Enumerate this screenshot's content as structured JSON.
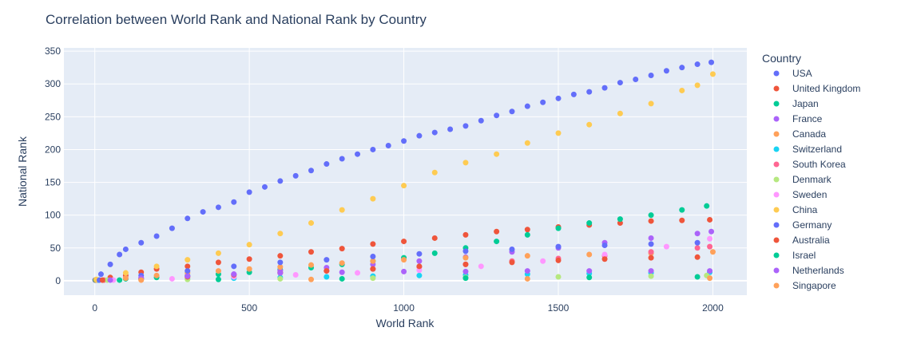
{
  "chart_data": {
    "type": "scatter",
    "title": "Correlation between World Rank and National Rank by Country",
    "xlabel": "World Rank",
    "ylabel": "National Rank",
    "xlim": [
      -100,
      2110
    ],
    "ylim": [
      -22,
      355
    ],
    "xticks": [
      0,
      500,
      1000,
      1500,
      2000
    ],
    "yticks": [
      0,
      50,
      100,
      150,
      200,
      250,
      300,
      350
    ],
    "grid": true,
    "legend_title": "Country",
    "legend_position": "right",
    "plot_bg": "#e5ecf6",
    "series": [
      {
        "name": "USA",
        "color": "#636efa",
        "points": [
          [
            1,
            1
          ],
          [
            20,
            10
          ],
          [
            50,
            25
          ],
          [
            80,
            40
          ],
          [
            100,
            48
          ],
          [
            150,
            58
          ],
          [
            200,
            68
          ],
          [
            250,
            80
          ],
          [
            300,
            95
          ],
          [
            350,
            105
          ],
          [
            400,
            112
          ],
          [
            450,
            120
          ],
          [
            500,
            135
          ],
          [
            550,
            143
          ],
          [
            600,
            152
          ],
          [
            650,
            160
          ],
          [
            700,
            168
          ],
          [
            750,
            178
          ],
          [
            800,
            186
          ],
          [
            850,
            193
          ],
          [
            900,
            200
          ],
          [
            950,
            206
          ],
          [
            1000,
            213
          ],
          [
            1050,
            221
          ],
          [
            1100,
            226
          ],
          [
            1150,
            231
          ],
          [
            1200,
            236
          ],
          [
            1250,
            244
          ],
          [
            1300,
            252
          ],
          [
            1350,
            258
          ],
          [
            1400,
            266
          ],
          [
            1450,
            272
          ],
          [
            1500,
            278
          ],
          [
            1550,
            284
          ],
          [
            1600,
            288
          ],
          [
            1650,
            294
          ],
          [
            1700,
            302
          ],
          [
            1750,
            307
          ],
          [
            1800,
            313
          ],
          [
            1850,
            320
          ],
          [
            1900,
            325
          ],
          [
            1950,
            330
          ],
          [
            1995,
            333
          ]
        ]
      },
      {
        "name": "United Kingdom",
        "color": "#ef553b",
        "points": [
          [
            2,
            1
          ],
          [
            50,
            5
          ],
          [
            100,
            8
          ],
          [
            150,
            13
          ],
          [
            200,
            18
          ],
          [
            300,
            22
          ],
          [
            400,
            28
          ],
          [
            500,
            33
          ],
          [
            600,
            38
          ],
          [
            700,
            44
          ],
          [
            800,
            49
          ],
          [
            900,
            56
          ],
          [
            1000,
            60
          ],
          [
            1100,
            65
          ],
          [
            1200,
            70
          ],
          [
            1300,
            75
          ],
          [
            1400,
            78
          ],
          [
            1500,
            82
          ],
          [
            1600,
            85
          ],
          [
            1700,
            88
          ],
          [
            1800,
            91
          ],
          [
            1900,
            92
          ],
          [
            1990,
            93
          ]
        ]
      },
      {
        "name": "Japan",
        "color": "#00cc96",
        "points": [
          [
            3,
            1
          ],
          [
            100,
            3
          ],
          [
            200,
            5
          ],
          [
            300,
            8
          ],
          [
            400,
            10
          ],
          [
            500,
            13
          ],
          [
            600,
            17
          ],
          [
            700,
            20
          ],
          [
            800,
            25
          ],
          [
            900,
            30
          ],
          [
            1000,
            35
          ],
          [
            1100,
            42
          ],
          [
            1200,
            50
          ],
          [
            1300,
            60
          ],
          [
            1400,
            70
          ],
          [
            1500,
            80
          ],
          [
            1600,
            88
          ],
          [
            1700,
            94
          ],
          [
            1800,
            100
          ],
          [
            1900,
            108
          ],
          [
            1980,
            114
          ]
        ]
      },
      {
        "name": "France",
        "color": "#ab63fa",
        "points": [
          [
            10,
            1
          ],
          [
            150,
            4
          ],
          [
            300,
            7
          ],
          [
            450,
            10
          ],
          [
            600,
            15
          ],
          [
            750,
            20
          ],
          [
            900,
            25
          ],
          [
            1050,
            30
          ],
          [
            1200,
            36
          ],
          [
            1350,
            44
          ],
          [
            1500,
            50
          ],
          [
            1650,
            58
          ],
          [
            1800,
            65
          ],
          [
            1950,
            72
          ],
          [
            1995,
            75
          ]
        ]
      },
      {
        "name": "Canada",
        "color": "#ffa15a",
        "points": [
          [
            5,
            1
          ],
          [
            100,
            4
          ],
          [
            200,
            8
          ],
          [
            300,
            12
          ],
          [
            400,
            15
          ],
          [
            500,
            18
          ],
          [
            600,
            21
          ],
          [
            700,
            24
          ],
          [
            800,
            27
          ],
          [
            900,
            30
          ],
          [
            1000,
            32
          ],
          [
            1200,
            35
          ],
          [
            1400,
            38
          ],
          [
            1600,
            40
          ],
          [
            1800,
            42
          ],
          [
            2000,
            44
          ]
        ]
      },
      {
        "name": "Switzerland",
        "color": "#19d3f3",
        "points": [
          [
            12,
            1
          ],
          [
            150,
            2
          ],
          [
            300,
            3
          ],
          [
            450,
            4
          ],
          [
            600,
            5
          ],
          [
            750,
            6
          ],
          [
            900,
            7
          ],
          [
            1050,
            8
          ],
          [
            1200,
            9
          ],
          [
            1400,
            10
          ],
          [
            1600,
            11
          ],
          [
            1800,
            12
          ],
          [
            1990,
            13
          ]
        ]
      },
      {
        "name": "South Korea",
        "color": "#ff6692",
        "points": [
          [
            30,
            1
          ],
          [
            150,
            3
          ],
          [
            300,
            6
          ],
          [
            450,
            9
          ],
          [
            600,
            12
          ],
          [
            750,
            15
          ],
          [
            900,
            18
          ],
          [
            1050,
            21
          ],
          [
            1200,
            25
          ],
          [
            1350,
            30
          ],
          [
            1500,
            34
          ],
          [
            1650,
            38
          ],
          [
            1800,
            44
          ],
          [
            1950,
            50
          ],
          [
            1990,
            52
          ]
        ]
      },
      {
        "name": "Denmark",
        "color": "#b6e880",
        "points": [
          [
            40,
            1
          ],
          [
            300,
            2
          ],
          [
            600,
            3
          ],
          [
            900,
            4
          ],
          [
            1200,
            5
          ],
          [
            1500,
            6
          ],
          [
            1800,
            7
          ],
          [
            1980,
            8
          ]
        ]
      },
      {
        "name": "Sweden",
        "color": "#ff97ff",
        "points": [
          [
            60,
            1
          ],
          [
            250,
            3
          ],
          [
            450,
            6
          ],
          [
            650,
            9
          ],
          [
            850,
            12
          ],
          [
            1050,
            16
          ],
          [
            1250,
            22
          ],
          [
            1450,
            30
          ],
          [
            1650,
            40
          ],
          [
            1850,
            52
          ],
          [
            1990,
            64
          ]
        ]
      },
      {
        "name": "China",
        "color": "#fecb52",
        "points": [
          [
            5,
            2
          ],
          [
            100,
            12
          ],
          [
            200,
            22
          ],
          [
            300,
            32
          ],
          [
            400,
            42
          ],
          [
            500,
            55
          ],
          [
            600,
            72
          ],
          [
            700,
            88
          ],
          [
            800,
            108
          ],
          [
            900,
            125
          ],
          [
            1000,
            145
          ],
          [
            1100,
            165
          ],
          [
            1200,
            180
          ],
          [
            1300,
            193
          ],
          [
            1400,
            210
          ],
          [
            1500,
            225
          ],
          [
            1600,
            238
          ],
          [
            1700,
            255
          ],
          [
            1800,
            270
          ],
          [
            1900,
            290
          ],
          [
            1950,
            298
          ],
          [
            2000,
            315
          ]
        ]
      },
      {
        "name": "Germany",
        "color": "#636efa",
        "points": [
          [
            15,
            1
          ],
          [
            150,
            8
          ],
          [
            300,
            15
          ],
          [
            450,
            22
          ],
          [
            600,
            28
          ],
          [
            750,
            32
          ],
          [
            900,
            37
          ],
          [
            1050,
            41
          ],
          [
            1200,
            45
          ],
          [
            1350,
            48
          ],
          [
            1500,
            52
          ],
          [
            1650,
            54
          ],
          [
            1800,
            56
          ],
          [
            1950,
            58
          ]
        ]
      },
      {
        "name": "Australia",
        "color": "#ef553b",
        "points": [
          [
            25,
            1
          ],
          [
            150,
            3
          ],
          [
            300,
            6
          ],
          [
            450,
            9
          ],
          [
            600,
            12
          ],
          [
            750,
            15
          ],
          [
            900,
            18
          ],
          [
            1050,
            22
          ],
          [
            1200,
            25
          ],
          [
            1350,
            28
          ],
          [
            1500,
            31
          ],
          [
            1650,
            33
          ],
          [
            1800,
            35
          ],
          [
            1950,
            36
          ]
        ]
      },
      {
        "name": "Israel",
        "color": "#00cc96",
        "points": [
          [
            80,
            1
          ],
          [
            400,
            2
          ],
          [
            800,
            3
          ],
          [
            1200,
            4
          ],
          [
            1600,
            5
          ],
          [
            1950,
            6
          ]
        ]
      },
      {
        "name": "Netherlands",
        "color": "#ab63fa",
        "points": [
          [
            50,
            1
          ],
          [
            150,
            4
          ],
          [
            300,
            7
          ],
          [
            450,
            10
          ],
          [
            600,
            12
          ],
          [
            800,
            13
          ],
          [
            1000,
            14
          ],
          [
            1200,
            14
          ],
          [
            1400,
            15
          ],
          [
            1600,
            15
          ],
          [
            1800,
            15
          ],
          [
            1990,
            15
          ]
        ]
      },
      {
        "name": "Singapore",
        "color": "#ffa15a",
        "points": [
          [
            150,
            1
          ],
          [
            700,
            2
          ],
          [
            1400,
            3
          ],
          [
            1990,
            4
          ]
        ]
      }
    ]
  }
}
